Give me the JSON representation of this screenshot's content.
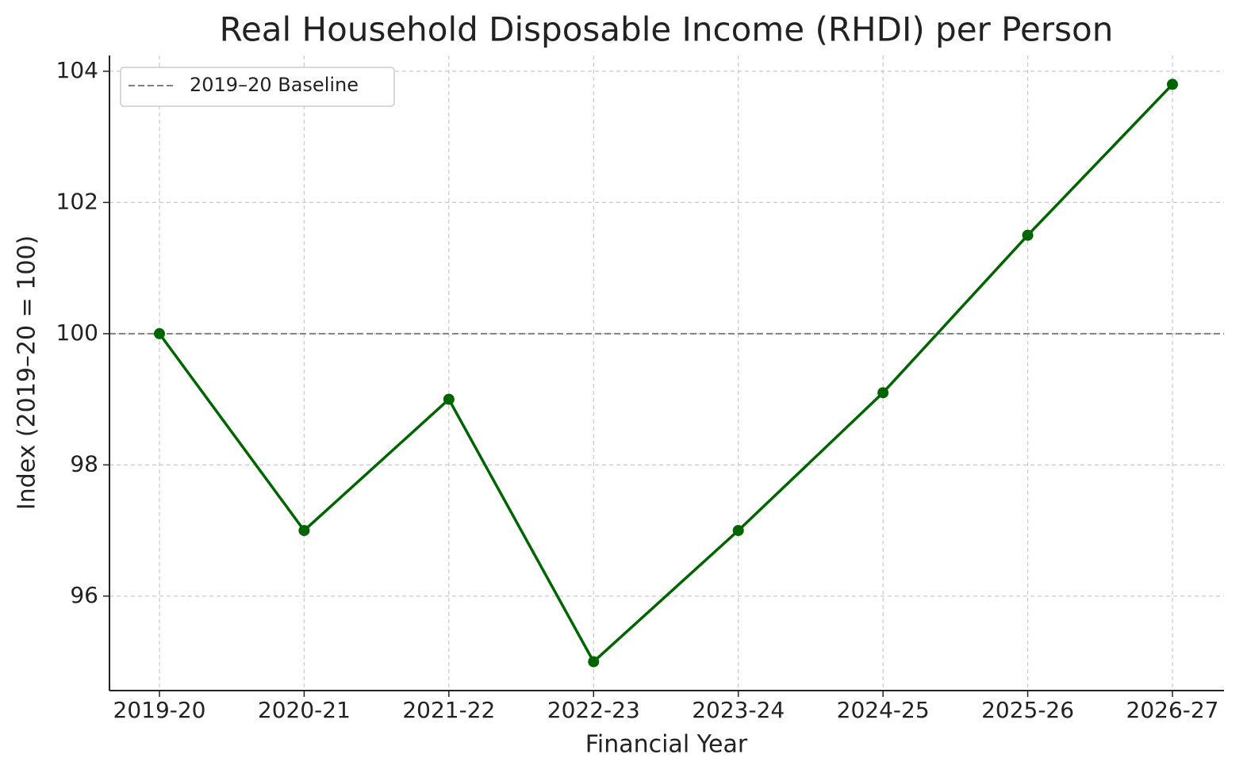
{
  "chart_data": {
    "type": "line",
    "title": "Real Household Disposable Income (RHDI) per Person",
    "x_label": "Financial Year",
    "y_label": "Index (2019–20 = 100)",
    "categories": [
      "2019-20",
      "2020-21",
      "2021-22",
      "2022-23",
      "2023-24",
      "2024-25",
      "2025-26",
      "2026-27"
    ],
    "values": [
      100,
      97,
      99,
      95,
      97,
      99.1,
      101.5,
      103.8
    ],
    "color": "#006400",
    "baseline": {
      "label": "2019–20 Baseline",
      "value": 100,
      "color": "#808080"
    },
    "ylim": [
      94.56,
      104.24
    ],
    "yticks": [
      96,
      98,
      100,
      102,
      104
    ],
    "grid": true,
    "legend": "upper-left"
  }
}
